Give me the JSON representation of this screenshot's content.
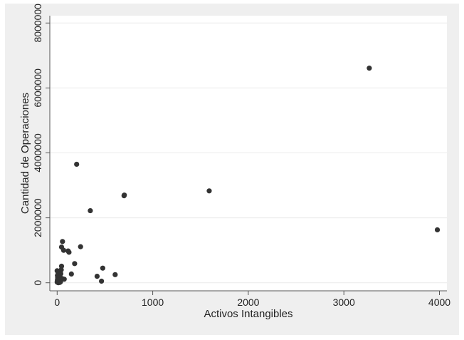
{
  "chart_data": {
    "type": "scatter",
    "title": "",
    "xlabel": "Activos Intangibles",
    "ylabel": "Cantidad de Operaciones",
    "xlim": [
      0,
      4000
    ],
    "ylim": [
      0,
      8000000
    ],
    "xticks": [
      "0",
      "1000",
      "2000",
      "3000",
      "4000"
    ],
    "yticks": [
      "0",
      "2000000",
      "4000000",
      "6000000",
      "8000000"
    ],
    "xtick_values": [
      0,
      1000,
      2000,
      3000,
      4000
    ],
    "ytick_values": [
      0,
      2000000,
      4000000,
      6000000,
      8000000
    ],
    "grid": "horizontal",
    "marker_color": "#333333",
    "background_color": "#efefef",
    "plot_color": "#ffffff",
    "points": [
      [
        3266,
        6610000
      ],
      [
        3978,
        1630000
      ],
      [
        1591,
        2830000
      ],
      [
        703,
        2700000
      ],
      [
        700,
        2680000
      ],
      [
        347,
        2220000
      ],
      [
        204,
        3650000
      ],
      [
        245,
        1110000
      ],
      [
        56,
        1270000
      ],
      [
        46,
        1100000
      ],
      [
        68,
        1000000
      ],
      [
        124,
        940000
      ],
      [
        115,
        980000
      ],
      [
        183,
        590000
      ],
      [
        149,
        270000
      ],
      [
        477,
        450000
      ],
      [
        418,
        200000
      ],
      [
        464,
        50000
      ],
      [
        607,
        250000
      ],
      [
        46,
        510000
      ],
      [
        43,
        400000
      ],
      [
        74,
        110000
      ],
      [
        60,
        120000
      ],
      [
        0,
        370000
      ],
      [
        10,
        300000
      ],
      [
        20,
        250000
      ],
      [
        30,
        200000
      ],
      [
        5,
        150000
      ],
      [
        15,
        100000
      ],
      [
        25,
        60000
      ],
      [
        35,
        30000
      ],
      [
        0,
        20000
      ],
      [
        8,
        50000
      ],
      [
        12,
        0
      ],
      [
        28,
        10000
      ],
      [
        40,
        140000
      ],
      [
        3,
        220000
      ],
      [
        18,
        330000
      ],
      [
        38,
        280000
      ],
      [
        22,
        170000
      ],
      [
        2,
        80000
      ],
      [
        33,
        90000
      ]
    ]
  }
}
